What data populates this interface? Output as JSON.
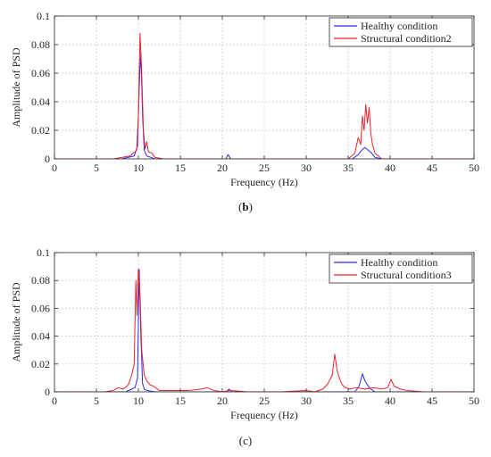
{
  "chart_data": [
    {
      "panel": "b",
      "type": "line",
      "xlabel": "Frequency (Hz)",
      "ylabel": "Amplitude of PSD",
      "xlim": [
        0,
        50
      ],
      "ylim": [
        0,
        0.1
      ],
      "xticks": [
        "0",
        "5",
        "10",
        "15",
        "20",
        "25",
        "30",
        "35",
        "40",
        "45",
        "50"
      ],
      "yticks": [
        "0",
        "0.02",
        "0.04",
        "0.06",
        "0.08",
        "0.1"
      ],
      "grid": true,
      "legend_position": "top-right",
      "series": [
        {
          "name": "Healthy condition",
          "color": "#2a2aee",
          "x": [
            0,
            8,
            9.5,
            9.9,
            10.1,
            10.3,
            10.5,
            10.7,
            11,
            12,
            20.4,
            20.7,
            21.0,
            35.5,
            36.2,
            36.6,
            37.0,
            37.4,
            37.8,
            38.2,
            39,
            50
          ],
          "y": [
            0,
            0,
            0.002,
            0.009,
            0.05,
            0.075,
            0.03,
            0.006,
            0.002,
            0,
            0,
            0.003,
            0,
            0,
            0.003,
            0.006,
            0.008,
            0.006,
            0.004,
            0.001,
            0,
            0
          ]
        },
        {
          "name": "Structural condition2",
          "color": "#e8232b",
          "x": [
            0,
            7,
            9,
            9.8,
            10.0,
            10.2,
            10.4,
            10.6,
            10.8,
            11.0,
            11.2,
            11.6,
            12,
            13,
            35,
            35.8,
            36.2,
            36.5,
            36.7,
            36.9,
            37.1,
            37.3,
            37.5,
            37.7,
            37.9,
            38.2,
            38.6,
            39,
            40,
            50
          ],
          "y": [
            0,
            0,
            0.002,
            0.006,
            0.03,
            0.088,
            0.06,
            0.02,
            0.007,
            0.012,
            0.005,
            0.004,
            0.001,
            0,
            0,
            0.004,
            0.015,
            0.01,
            0.03,
            0.02,
            0.038,
            0.025,
            0.036,
            0.018,
            0.01,
            0.004,
            0.002,
            0,
            0,
            0
          ]
        }
      ],
      "caption": "(b)"
    },
    {
      "panel": "c",
      "type": "line",
      "xlabel": "Frequency (Hz)",
      "ylabel": "Amplitude of PSD",
      "xlim": [
        0,
        50
      ],
      "ylim": [
        0,
        0.1
      ],
      "xticks": [
        "0",
        "5",
        "10",
        "15",
        "20",
        "25",
        "30",
        "35",
        "40",
        "45",
        "50"
      ],
      "yticks": [
        "0",
        "0.02",
        "0.04",
        "0.06",
        "0.08",
        "0.1"
      ],
      "grid": true,
      "legend_position": "top-right",
      "series": [
        {
          "name": "Healthy condition",
          "color": "#2a2aee",
          "x": [
            0,
            8.5,
            9.2,
            9.6,
            9.9,
            10.1,
            10.3,
            10.5,
            10.7,
            11,
            12,
            20.5,
            20.8,
            21.1,
            35.8,
            36.3,
            36.7,
            37.0,
            37.3,
            37.7,
            38.2,
            50
          ],
          "y": [
            0,
            0,
            0.002,
            0.003,
            0.01,
            0.088,
            0.04,
            0.006,
            0.002,
            0.001,
            0,
            0,
            0.002,
            0,
            0,
            0.004,
            0.013,
            0.008,
            0.005,
            0.002,
            0,
            0
          ]
        },
        {
          "name": "Structural condition3",
          "color": "#e8232b",
          "x": [
            0,
            6,
            7,
            7.6,
            8.2,
            8.8,
            9.2,
            9.5,
            9.7,
            9.85,
            10.0,
            10.2,
            10.4,
            10.7,
            11,
            11.4,
            11.8,
            12.5,
            14,
            16,
            17.5,
            18.2,
            19,
            20,
            21,
            23,
            27,
            30,
            31,
            32,
            32.6,
            33.1,
            33.4,
            33.7,
            34.0,
            34.3,
            34.7,
            35.2,
            36,
            37,
            38,
            39,
            39.7,
            40.1,
            40.5,
            41.2,
            42,
            44,
            50
          ],
          "y": [
            0,
            0,
            0.001,
            0.003,
            0.002,
            0.005,
            0.012,
            0.02,
            0.08,
            0.055,
            0.088,
            0.07,
            0.03,
            0.012,
            0.008,
            0.005,
            0.004,
            0.001,
            0.001,
            0.001,
            0.002,
            0.003,
            0.001,
            0,
            0.001,
            0,
            0,
            0.001,
            0,
            0.002,
            0.006,
            0.012,
            0.027,
            0.015,
            0.009,
            0.005,
            0.003,
            0.002,
            0.003,
            0.002,
            0.003,
            0.002,
            0.003,
            0.009,
            0.004,
            0.002,
            0.001,
            0,
            0
          ]
        }
      ],
      "caption": "(c)"
    }
  ]
}
